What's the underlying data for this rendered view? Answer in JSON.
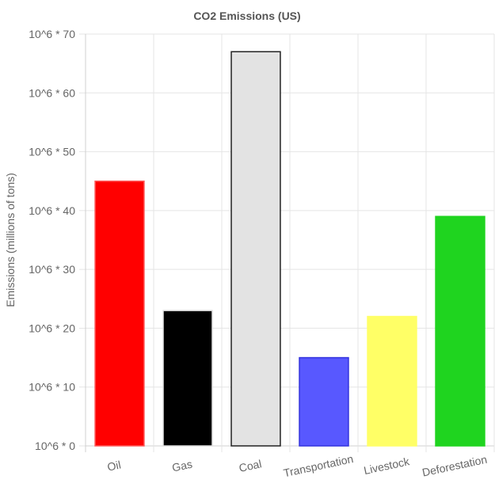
{
  "chart_data": {
    "type": "bar",
    "title": "CO2 Emissions (US)",
    "xlabel": "",
    "ylabel": "Emissions (millions of tons)",
    "ytick_prefix": "10^6 * ",
    "ylim": [
      0,
      70
    ],
    "ytick_step": 10,
    "grid": true,
    "categories": [
      "Oil",
      "Gas",
      "Coal",
      "Transportation",
      "Livestock",
      "Deforestation"
    ],
    "series": [
      {
        "values": [
          45,
          23,
          67,
          15,
          22,
          39
        ],
        "fill_colors": [
          "#ff0000",
          "#000000",
          "#e3e3e3",
          "#5858ff",
          "#ffff66",
          "#1fd41f"
        ],
        "border_colors": [
          "#ff5a5a",
          "#dddddd",
          "#222222",
          "#3333dd",
          "#ffff66",
          "#1fd41f"
        ]
      }
    ]
  }
}
